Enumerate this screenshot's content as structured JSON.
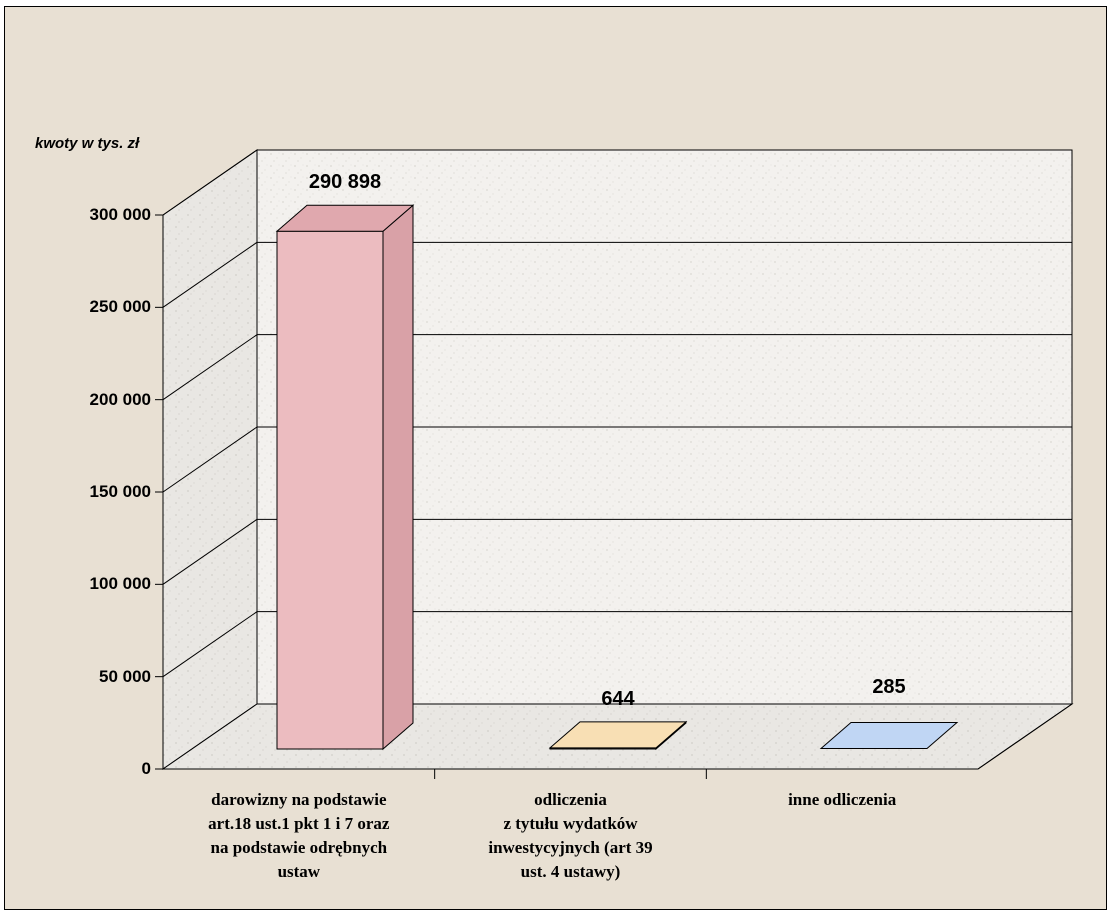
{
  "chart_data": {
    "type": "bar",
    "ylabel": "kwoty w tys. zł",
    "ylim": [
      0,
      300000
    ],
    "y_ticks": [
      {
        "value": 0,
        "label": "0"
      },
      {
        "value": 50000,
        "label": "50 000"
      },
      {
        "value": 100000,
        "label": "100 000"
      },
      {
        "value": 150000,
        "label": "150 000"
      },
      {
        "value": 200000,
        "label": "200 000"
      },
      {
        "value": 250000,
        "label": "250 000"
      },
      {
        "value": 300000,
        "label": "300 000"
      }
    ],
    "categories": [
      "darowizny na podstawie\nart.18 ust.1 pkt 1 i 7 oraz\nna podstawie odrębnych\nustaw",
      "odliczenia\nz tytułu wydatków\ninwestycyjnych (art 39\nust. 4 ustawy)",
      "inne odliczenia"
    ],
    "values": [
      290898,
      644,
      285
    ],
    "data_labels": [
      "290 898",
      "644",
      "285"
    ],
    "colors": {
      "bars": [
        "#ecbcc0",
        "#fcebcb",
        "#d3e4fa"
      ],
      "bar_tops": [
        "#e0a8ae",
        "#f8dfb4",
        "#c0d6f4"
      ],
      "bar_sides": [
        "#d9a1a7",
        "#f0d6a8",
        "#b8cce8"
      ]
    },
    "grid": true,
    "legend": "none"
  }
}
